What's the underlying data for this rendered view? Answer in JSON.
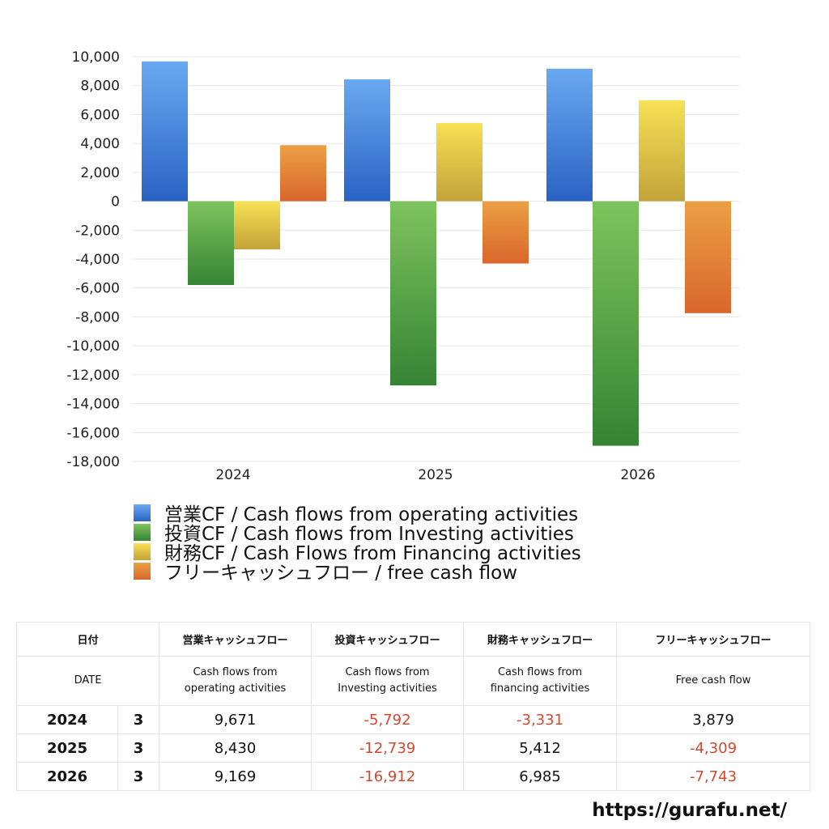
{
  "chart_data": {
    "type": "bar",
    "categories": [
      "2024",
      "2025",
      "2026"
    ],
    "series": [
      {
        "name": "営業CF / Cash flows from operating activities",
        "values": [
          9671,
          8430,
          9169
        ],
        "color_top": "#6aa9f0",
        "color_bottom": "#2a62c4"
      },
      {
        "name": "投資CF / Cash flows from Investing activities",
        "values": [
          -5792,
          -12739,
          -16912
        ],
        "color_top": "#7ec45e",
        "color_bottom": "#358434"
      },
      {
        "name": "財務CF / Cash Flows from Financing activities",
        "values": [
          -3331,
          5412,
          6985
        ],
        "color_top": "#f7e154",
        "color_bottom": "#c2a33a"
      },
      {
        "name": "フリーキャッシュフロー / free cash flow",
        "values": [
          3879,
          -4309,
          -7743
        ],
        "color_top": "#eba045",
        "color_bottom": "#d9662c"
      }
    ],
    "yticks": [
      "10,000",
      "8,000",
      "6,000",
      "4,000",
      "2,000",
      "0",
      "-2,000",
      "-4,000",
      "-6,000",
      "-8,000",
      "-10,000",
      "-12,000",
      "-14,000",
      "-16,000",
      "-18,000"
    ],
    "ylim": [
      -18000,
      10000
    ],
    "grid": true,
    "legend_position": "bottom-left"
  },
  "table": {
    "header_ja": [
      "日付",
      "営業キャッシュフロー",
      "投資キャッシュフロー",
      "財務キャッシュフロー",
      "フリーキャッシュフロー"
    ],
    "header_en": [
      "DATE",
      "Cash flows from\noperating activities",
      "Cash flows from\nInvesting activities",
      "Cash flows from\nfinancing activities",
      "Free cash flow"
    ],
    "rows": [
      {
        "year": "2024",
        "month": "3",
        "op": "9,671",
        "inv": "-5,792",
        "fin": "-3,331",
        "fcf": "3,879"
      },
      {
        "year": "2025",
        "month": "3",
        "op": "8,430",
        "inv": "-12,739",
        "fin": "5,412",
        "fcf": "-4,309"
      },
      {
        "year": "2026",
        "month": "3",
        "op": "9,169",
        "inv": "-16,912",
        "fin": "6,985",
        "fcf": "-7,743"
      }
    ]
  },
  "site_url": "https://gurafu.net/"
}
